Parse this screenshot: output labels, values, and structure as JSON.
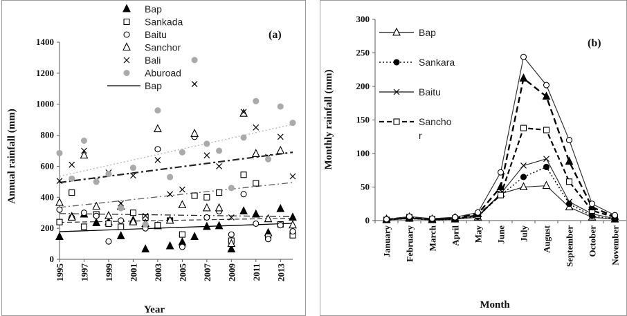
{
  "chart_data": [
    {
      "type": "scatter",
      "panel_label": "(a)",
      "xlabel": "Year",
      "ylabel": "Annual rainfall (mm)",
      "xlim": [
        1995,
        2014
      ],
      "ylim": [
        0,
        1400
      ],
      "x_ticks": [
        "1995",
        "1997",
        "1999",
        "2001",
        "2003",
        "2005",
        "2007",
        "2009",
        "2011",
        "2013"
      ],
      "y_ticks": [
        "0",
        "200",
        "400",
        "600",
        "800",
        "1000",
        "1200",
        "1400"
      ],
      "legend_position": "top-center",
      "trend_legend_label": "Bap",
      "series": [
        {
          "name": "Bap",
          "marker": "triangle-filled",
          "color": "#000000",
          "x": [
            1995,
            1996,
            1997,
            1998,
            1999,
            2000,
            2001,
            2002,
            2003,
            2004,
            2005,
            2006,
            2007,
            2008,
            2009,
            2010,
            2011,
            2012,
            2013,
            2014
          ],
          "y": [
            145,
            275,
            290,
            235,
            240,
            150,
            250,
            65,
            215,
            85,
            110,
            145,
            210,
            215,
            65,
            310,
            290,
            170,
            325,
            270
          ],
          "trend": {
            "start": 178,
            "end": 232,
            "style": "solid"
          }
        },
        {
          "name": "Sankada",
          "marker": "square-open",
          "color": "#000000",
          "x": [
            1995,
            1996,
            1997,
            1998,
            1999,
            2000,
            2001,
            2002,
            2003,
            2004,
            2005,
            2006,
            2007,
            2008,
            2009,
            2010,
            2011,
            2012,
            2013,
            2014
          ],
          "y": [
            240,
            430,
            210,
            290,
            230,
            210,
            300,
            270,
            220,
            250,
            160,
            410,
            400,
            430,
            120,
            545,
            490,
            145,
            225,
            155
          ],
          "trend": {
            "start": 238,
            "end": 265,
            "style": "dashed"
          }
        },
        {
          "name": "Baitu",
          "marker": "circle-open",
          "color": "#000000",
          "x": [
            1995,
            1996,
            1997,
            1998,
            1999,
            2000,
            2001,
            2002,
            2003,
            2004,
            2005,
            2006,
            2007,
            2008,
            2009,
            2010,
            2011,
            2012,
            2013,
            2014
          ],
          "y": [
            320,
            270,
            300,
            280,
            115,
            250,
            240,
            200,
            710,
            250,
            80,
            790,
            270,
            310,
            160,
            420,
            230,
            130,
            220,
            180
          ],
          "trend": {
            "start": 295,
            "end": 275,
            "style": "dash-dot"
          }
        },
        {
          "name": "Sanchor",
          "marker": "triangle-open",
          "color": "#000000",
          "x": [
            1995,
            1996,
            1997,
            1998,
            1999,
            2000,
            2001,
            2002,
            2003,
            2004,
            2005,
            2006,
            2007,
            2008,
            2009,
            2010,
            2011,
            2012,
            2013,
            2014
          ],
          "y": [
            365,
            270,
            670,
            340,
            280,
            340,
            240,
            230,
            840,
            250,
            350,
            810,
            330,
            330,
            100,
            940,
            680,
            260,
            700,
            220
          ],
          "trend": {
            "start": 335,
            "end": 495,
            "style": "dash-dot"
          }
        },
        {
          "name": "Bali",
          "marker": "x",
          "color": "#000000",
          "x": [
            1995,
            1996,
            1997,
            1998,
            1999,
            2000,
            2001,
            2002,
            2003,
            2004,
            2005,
            2006,
            2007,
            2008,
            2009,
            2010,
            2011,
            2012,
            2013,
            2014
          ],
          "y": [
            505,
            610,
            700,
            510,
            560,
            360,
            540,
            280,
            640,
            420,
            450,
            1130,
            670,
            600,
            270,
            950,
            850,
            660,
            790,
            535
          ],
          "trend": {
            "start": 495,
            "end": 690,
            "style": "dash-dot-bold"
          }
        },
        {
          "name": "Aburoad",
          "marker": "circle-filled",
          "color": "#aaaaaa",
          "x": [
            1995,
            1996,
            1997,
            1998,
            1999,
            2000,
            2001,
            2002,
            2003,
            2004,
            2005,
            2006,
            2007,
            2008,
            2009,
            2010,
            2011,
            2012,
            2013,
            2014
          ],
          "y": [
            685,
            520,
            765,
            500,
            550,
            330,
            590,
            225,
            960,
            530,
            690,
            1285,
            745,
            700,
            460,
            785,
            1020,
            645,
            985,
            880
          ],
          "trend": {
            "start": 535,
            "end": 870,
            "style": "dotted"
          }
        }
      ]
    },
    {
      "type": "line",
      "panel_label": "(b)",
      "xlabel": "Month",
      "ylabel": "Monthly rainfall (mm)",
      "categories": [
        "January",
        "February",
        "March",
        "April",
        "May",
        "June",
        "July",
        "August",
        "September",
        "October",
        "November"
      ],
      "ylim": [
        0,
        300
      ],
      "y_ticks": [
        "0",
        "50",
        "100",
        "150",
        "200",
        "250",
        "300"
      ],
      "legend_position": "top-left",
      "series": [
        {
          "name": "Bap",
          "marker": "triangle-open",
          "line": "solid",
          "values": [
            1,
            3,
            1,
            2,
            5,
            40,
            50,
            52,
            20,
            5,
            2
          ]
        },
        {
          "name": "Sankara",
          "marker": "circle-filled",
          "line": "dotted",
          "values": [
            1,
            3,
            1,
            2,
            6,
            38,
            65,
            80,
            25,
            7,
            2
          ]
        },
        {
          "name": "Baitu",
          "marker": "x",
          "line": "solid",
          "values": [
            1,
            4,
            2,
            3,
            7,
            40,
            82,
            92,
            28,
            10,
            3
          ]
        },
        {
          "name": "Sancho r",
          "legend_lines": [
            "Sancho",
            "r"
          ],
          "marker": "square-open",
          "line": "dashed",
          "values": [
            1,
            5,
            2,
            3,
            8,
            38,
            138,
            135,
            58,
            15,
            5
          ]
        },
        {
          "name": "",
          "marker": "triangle-filled",
          "line": "dashed-bold",
          "values": [
            2,
            5,
            2,
            4,
            10,
            50,
            212,
            185,
            88,
            20,
            6
          ]
        },
        {
          "name": "",
          "marker": "circle-open",
          "line": "solid",
          "values": [
            2,
            6,
            3,
            5,
            12,
            72,
            244,
            202,
            120,
            25,
            8
          ]
        }
      ]
    }
  ]
}
